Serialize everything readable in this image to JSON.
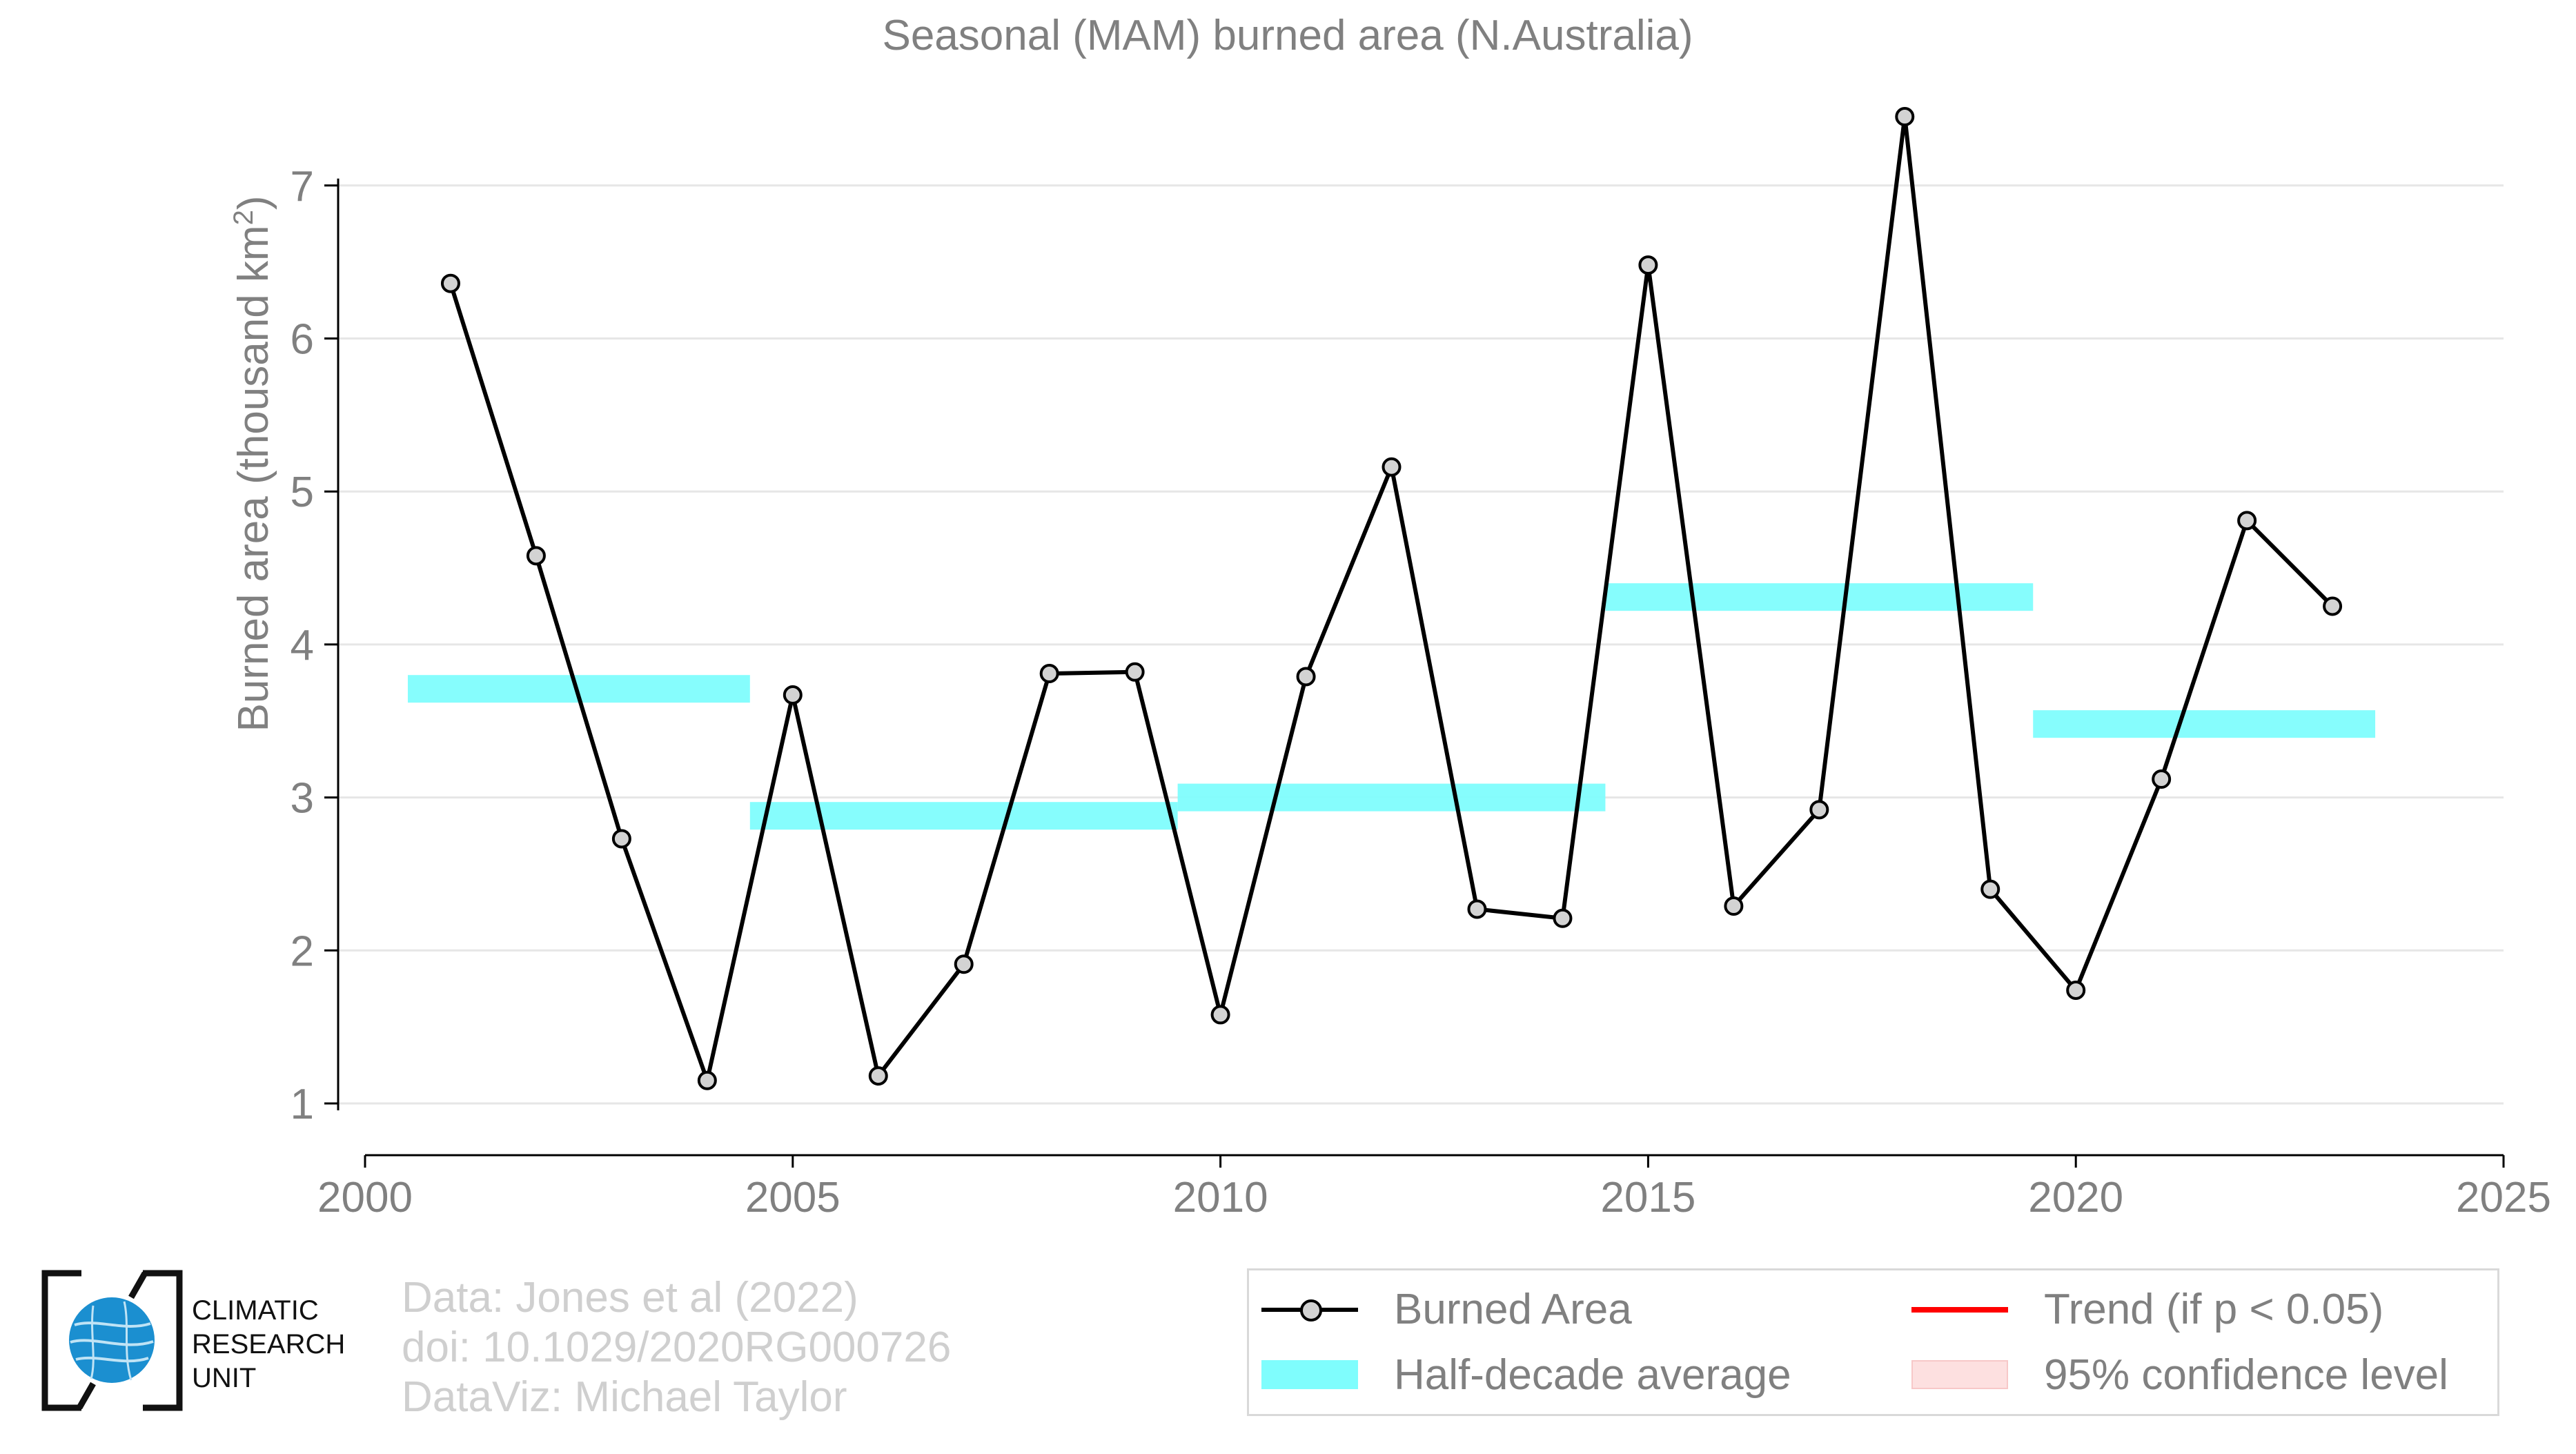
{
  "chart_data": {
    "type": "line",
    "title": "Seasonal (MAM) burned area (N.Australia)",
    "xlabel": "",
    "ylabel_main": "Burned area (thousand km",
    "ylabel_sup": "2",
    "ylabel_tail": ")",
    "xlim": [
      2000,
      2025
    ],
    "ylim": [
      0.65,
      7.9
    ],
    "x_ticks": [
      2000,
      2005,
      2010,
      2015,
      2020,
      2025
    ],
    "y_ticks": [
      1,
      2,
      3,
      4,
      5,
      6,
      7
    ],
    "grid": "horizontal",
    "legend_position": "bottom-right",
    "series": [
      {
        "name": "Burned Area",
        "color": "#000000",
        "marker_fill": "#d3d3d3",
        "x": [
          2001,
          2002,
          2003,
          2004,
          2005,
          2006,
          2007,
          2008,
          2009,
          2010,
          2011,
          2012,
          2013,
          2014,
          2015,
          2016,
          2017,
          2018,
          2019,
          2020,
          2021,
          2022,
          2023
        ],
        "values": [
          6.36,
          4.58,
          2.73,
          1.15,
          3.67,
          1.18,
          1.91,
          3.81,
          3.82,
          1.58,
          3.79,
          5.16,
          2.27,
          2.21,
          6.48,
          2.29,
          2.92,
          7.45,
          2.4,
          1.74,
          3.12,
          4.81,
          4.25
        ]
      }
    ],
    "half_decade_average": {
      "name": "Half-decade average",
      "color": "#7ffdfd",
      "segments": [
        {
          "x_start": 2000.5,
          "x_end": 2004.5,
          "value": 3.71
        },
        {
          "x_start": 2004.5,
          "x_end": 2009.5,
          "value": 2.88
        },
        {
          "x_start": 2009.5,
          "x_end": 2014.5,
          "value": 3.0
        },
        {
          "x_start": 2014.5,
          "x_end": 2019.5,
          "value": 4.31
        },
        {
          "x_start": 2019.5,
          "x_end": 2023.5,
          "value": 3.48
        }
      ]
    },
    "legend": [
      {
        "label": "Burned Area",
        "swatch": "line-marker",
        "color": "#000000"
      },
      {
        "label": "Trend (if p < 0.05)",
        "swatch": "line",
        "color": "#ff0000"
      },
      {
        "label": "Half-decade average",
        "swatch": "band",
        "color": "#7ffdfd"
      },
      {
        "label": "95% confidence level",
        "swatch": "band",
        "color": "#fde0e0"
      }
    ]
  },
  "credits": {
    "line1": "Data: Jones et al (2022)",
    "line2": "doi: 10.1029/2020RG000726",
    "line3": "DataViz: Michael Taylor"
  },
  "logo": {
    "line1": "CLIMATIC",
    "line2": "RESEARCH",
    "line3": "UNIT",
    "icon": "globe-icon",
    "globe_color": "#1b8fd0"
  }
}
